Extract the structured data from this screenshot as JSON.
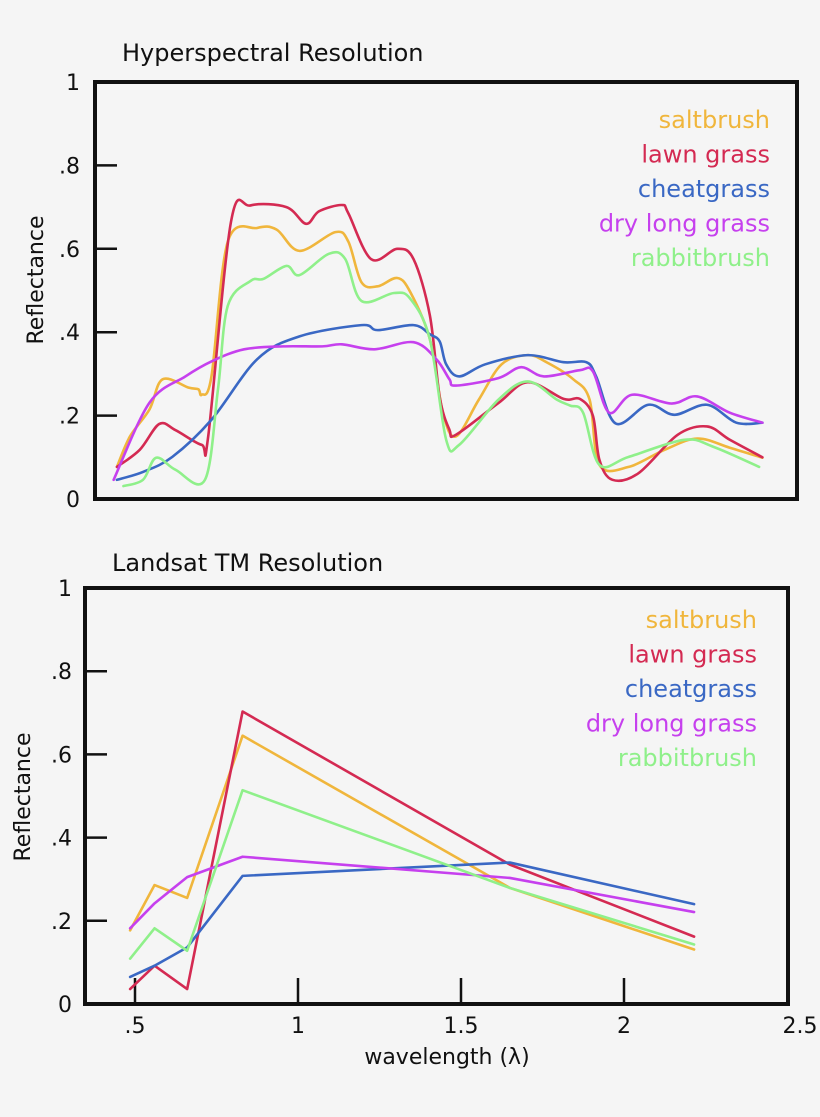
{
  "chart_data": [
    {
      "type": "line",
      "title": "Hyperspectral Resolution",
      "xlabel": "",
      "ylabel": "Reflectance",
      "ylim": [
        0,
        1
      ],
      "xlim": [
        0.35,
        2.5
      ],
      "yticks": [
        "0",
        ".2",
        ".4",
        ".6",
        ".8",
        "1"
      ],
      "grid": false,
      "legend_position": "top-right",
      "series": [
        {
          "name": "saltbrush",
          "color": "#f0b63c",
          "x": [
            0.42,
            0.46,
            0.52,
            0.56,
            0.64,
            0.67,
            0.68,
            0.71,
            0.76,
            0.85,
            0.91,
            0.98,
            1.09,
            1.13,
            1.17,
            1.22,
            1.28,
            1.32,
            1.38,
            1.42,
            1.46,
            1.53,
            1.6,
            1.68,
            1.74,
            1.82,
            1.87,
            1.9,
            1.99,
            2.1,
            2.2,
            2.3,
            2.4
          ],
          "y": [
            0.077,
            0.15,
            0.215,
            0.287,
            0.267,
            0.263,
            0.25,
            0.294,
            0.617,
            0.65,
            0.646,
            0.595,
            0.64,
            0.617,
            0.52,
            0.51,
            0.53,
            0.496,
            0.383,
            0.207,
            0.15,
            0.238,
            0.323,
            0.345,
            0.327,
            0.287,
            0.238,
            0.082,
            0.077,
            0.118,
            0.145,
            0.123,
            0.099
          ]
        },
        {
          "name": "lawn grass",
          "color": "#d42a52",
          "x": [
            0.42,
            0.49,
            0.55,
            0.6,
            0.68,
            0.7,
            0.77,
            0.83,
            0.94,
            1.0,
            1.04,
            1.11,
            1.13,
            1.2,
            1.28,
            1.33,
            1.38,
            1.41,
            1.44,
            1.46,
            1.59,
            1.68,
            1.79,
            1.84,
            1.88,
            1.9,
            1.94,
            2.02,
            2.14,
            2.23,
            2.3,
            2.4
          ],
          "y": [
            0.077,
            0.118,
            0.18,
            0.165,
            0.13,
            0.15,
            0.665,
            0.704,
            0.7,
            0.66,
            0.69,
            0.705,
            0.685,
            0.575,
            0.6,
            0.575,
            0.44,
            0.245,
            0.166,
            0.154,
            0.23,
            0.28,
            0.24,
            0.24,
            0.2,
            0.094,
            0.046,
            0.062,
            0.154,
            0.174,
            0.142,
            0.1
          ]
        },
        {
          "name": "cheatgrass",
          "color": "#3a68c4",
          "x": [
            0.42,
            0.5,
            0.59,
            0.71,
            0.85,
            0.98,
            1.17,
            1.22,
            1.33,
            1.38,
            1.41,
            1.43,
            1.47,
            1.55,
            1.68,
            1.79,
            1.86,
            1.89,
            1.95,
            2.05,
            2.13,
            2.23,
            2.32,
            2.4
          ],
          "y": [
            0.046,
            0.065,
            0.101,
            0.19,
            0.335,
            0.39,
            0.417,
            0.405,
            0.417,
            0.395,
            0.378,
            0.323,
            0.294,
            0.323,
            0.345,
            0.328,
            0.328,
            0.294,
            0.181,
            0.226,
            0.202,
            0.226,
            0.183,
            0.183
          ]
        },
        {
          "name": "dry long grass",
          "color": "#c640ee",
          "x": [
            0.41,
            0.52,
            0.63,
            0.71,
            0.81,
            0.93,
            1.05,
            1.11,
            1.21,
            1.33,
            1.4,
            1.44,
            1.46,
            1.59,
            1.66,
            1.73,
            1.84,
            1.88,
            1.93,
            2.0,
            2.12,
            2.2,
            2.3,
            2.4
          ],
          "y": [
            0.046,
            0.231,
            0.294,
            0.33,
            0.359,
            0.366,
            0.366,
            0.371,
            0.359,
            0.376,
            0.335,
            0.287,
            0.272,
            0.29,
            0.316,
            0.294,
            0.309,
            0.306,
            0.207,
            0.25,
            0.229,
            0.246,
            0.207,
            0.183
          ]
        },
        {
          "name": "rabbitbrush",
          "color": "#8ff08a",
          "x": [
            0.44,
            0.5,
            0.54,
            0.6,
            0.69,
            0.73,
            0.76,
            0.83,
            0.87,
            0.94,
            0.98,
            1.07,
            1.12,
            1.17,
            1.27,
            1.32,
            1.38,
            1.43,
            1.47,
            1.59,
            1.68,
            1.77,
            1.81,
            1.85,
            1.9,
            1.99,
            2.16,
            2.25,
            2.39
          ],
          "y": [
            0.031,
            0.046,
            0.099,
            0.07,
            0.046,
            0.263,
            0.463,
            0.523,
            0.528,
            0.559,
            0.537,
            0.588,
            0.576,
            0.475,
            0.494,
            0.48,
            0.383,
            0.142,
            0.13,
            0.238,
            0.282,
            0.238,
            0.224,
            0.207,
            0.082,
            0.101,
            0.142,
            0.125,
            0.077
          ]
        }
      ]
    },
    {
      "type": "line",
      "title": "Landsat TM Resolution",
      "xlabel": "wavelength (λ)",
      "ylabel": "Reflectance",
      "ylim": [
        0,
        1
      ],
      "xlim": [
        0.35,
        2.5
      ],
      "xticks": [
        ".5",
        "1",
        "1.5",
        "2",
        "2.5"
      ],
      "yticks": [
        "0",
        ".2",
        ".4",
        ".6",
        ".8",
        "1"
      ],
      "grid": false,
      "legend_position": "top-right",
      "x": [
        0.485,
        0.56,
        0.66,
        0.83,
        1.65,
        2.215
      ],
      "series": [
        {
          "name": "saltbrush",
          "color": "#f0b63c",
          "values": [
            0.177,
            0.286,
            0.255,
            0.645,
            0.279,
            0.131
          ]
        },
        {
          "name": "lawn grass",
          "color": "#d42a52",
          "values": [
            0.036,
            0.092,
            0.036,
            0.703,
            0.335,
            0.162
          ]
        },
        {
          "name": "cheatgrass",
          "color": "#3a68c4",
          "values": [
            0.065,
            0.092,
            0.136,
            0.308,
            0.34,
            0.24
          ]
        },
        {
          "name": "dry long grass",
          "color": "#c640ee",
          "values": [
            0.182,
            0.242,
            0.305,
            0.354,
            0.303,
            0.221
          ]
        },
        {
          "name": "rabbitbrush",
          "color": "#8ff08a",
          "values": [
            0.109,
            0.182,
            0.128,
            0.514,
            0.279,
            0.143
          ]
        }
      ]
    }
  ]
}
